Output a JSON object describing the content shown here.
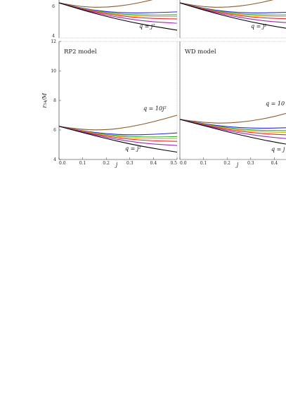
{
  "chart_data": [
    {
      "type": "line",
      "panel": "top-left",
      "title": "",
      "xlabel": "",
      "ylabel": "",
      "xlim": [
        0,
        0.5
      ],
      "ylim": [
        4,
        12
      ],
      "yticks": [
        "4",
        "6"
      ],
      "xticks": [],
      "annotations": [
        "q = j²"
      ],
      "series": [
        {
          "color": "#8B5A2B",
          "x": [
            0,
            0.1,
            0.2,
            0.3,
            0.4,
            0.5
          ],
          "y": [
            6.33,
            6.05,
            6.02,
            6.2,
            6.55,
            7.0
          ]
        },
        {
          "color": "#2A2AE0",
          "x": [
            0,
            0.1,
            0.2,
            0.3,
            0.4,
            0.5
          ],
          "y": [
            6.33,
            5.95,
            5.72,
            5.64,
            5.66,
            5.72
          ]
        },
        {
          "color": "#2AAA2A",
          "x": [
            0,
            0.1,
            0.2,
            0.3,
            0.4,
            0.5
          ],
          "y": [
            6.33,
            5.93,
            5.66,
            5.53,
            5.5,
            5.52
          ]
        },
        {
          "color": "#E0B020",
          "x": [
            0,
            0.1,
            0.2,
            0.3,
            0.4,
            0.5
          ],
          "y": [
            6.33,
            5.92,
            5.63,
            5.46,
            5.4,
            5.4
          ]
        },
        {
          "color": "#E02A2A",
          "x": [
            0,
            0.1,
            0.2,
            0.3,
            0.4,
            0.5
          ],
          "y": [
            6.33,
            5.9,
            5.58,
            5.37,
            5.27,
            5.24
          ]
        },
        {
          "color": "#9A2AB0",
          "x": [
            0,
            0.1,
            0.2,
            0.3,
            0.4,
            0.5
          ],
          "y": [
            6.33,
            5.87,
            5.5,
            5.22,
            5.04,
            4.95
          ]
        },
        {
          "color": "#000000",
          "x": [
            0,
            0.1,
            0.2,
            0.3,
            0.4,
            0.5
          ],
          "y": [
            6.33,
            5.84,
            5.41,
            5.04,
            4.74,
            4.48
          ]
        }
      ]
    },
    {
      "type": "line",
      "panel": "top-right",
      "title": "",
      "xlabel": "",
      "ylabel": "",
      "xlim": [
        0,
        0.5
      ],
      "ylim": [
        4,
        12
      ],
      "yticks": [],
      "xticks": [],
      "annotations": [
        "q = j²"
      ],
      "series": [
        {
          "color": "#8B5A2B",
          "x": [
            0,
            0.1,
            0.2,
            0.3,
            0.4,
            0.5
          ],
          "y": [
            6.33,
            6.05,
            6.02,
            6.2,
            6.55,
            7.0
          ]
        },
        {
          "color": "#2A2AE0",
          "x": [
            0,
            0.1,
            0.2,
            0.3,
            0.4,
            0.5
          ],
          "y": [
            6.33,
            5.95,
            5.72,
            5.64,
            5.66,
            5.72
          ]
        },
        {
          "color": "#2AAA2A",
          "x": [
            0,
            0.1,
            0.2,
            0.3,
            0.4,
            0.5
          ],
          "y": [
            6.33,
            5.93,
            5.66,
            5.53,
            5.5,
            5.52
          ]
        },
        {
          "color": "#E0B020",
          "x": [
            0,
            0.1,
            0.2,
            0.3,
            0.4,
            0.5
          ],
          "y": [
            6.33,
            5.92,
            5.63,
            5.46,
            5.4,
            5.4
          ]
        },
        {
          "color": "#E02A2A",
          "x": [
            0,
            0.1,
            0.2,
            0.3,
            0.4,
            0.5
          ],
          "y": [
            6.33,
            5.9,
            5.58,
            5.37,
            5.27,
            5.24
          ]
        },
        {
          "color": "#9A2AB0",
          "x": [
            0,
            0.1,
            0.2,
            0.3,
            0.4,
            0.5
          ],
          "y": [
            6.33,
            5.87,
            5.5,
            5.22,
            5.04,
            4.95
          ]
        },
        {
          "color": "#000000",
          "x": [
            0,
            0.1,
            0.2,
            0.3,
            0.4,
            0.5
          ],
          "y": [
            6.33,
            5.84,
            5.41,
            5.04,
            4.74,
            4.48
          ]
        }
      ]
    },
    {
      "type": "line",
      "panel": "bottom-left",
      "title": "RP2 model",
      "xlabel": "j",
      "ylabel": "r₅₄/M",
      "xlim": [
        0,
        0.5
      ],
      "ylim": [
        4,
        12
      ],
      "yticks": [
        "4",
        "6",
        "8",
        "10",
        "12"
      ],
      "xticks": [
        "0.0",
        "0.1",
        "0.2",
        "0.3",
        "0.4",
        "0.5"
      ],
      "annotations": [
        "q = 10j²",
        "q = j²"
      ],
      "series": [
        {
          "color": "#8B5A2B",
          "x": [
            0,
            0.1,
            0.2,
            0.3,
            0.4,
            0.5
          ],
          "y": [
            6.25,
            6.02,
            6.0,
            6.2,
            6.55,
            7.0
          ]
        },
        {
          "color": "#2A2AE0",
          "x": [
            0,
            0.1,
            0.2,
            0.3,
            0.4,
            0.5
          ],
          "y": [
            6.25,
            5.94,
            5.74,
            5.66,
            5.7,
            5.8
          ]
        },
        {
          "color": "#2AAA2A",
          "x": [
            0,
            0.1,
            0.2,
            0.3,
            0.4,
            0.5
          ],
          "y": [
            6.25,
            5.92,
            5.68,
            5.55,
            5.52,
            5.55
          ]
        },
        {
          "color": "#E0B020",
          "x": [
            0,
            0.1,
            0.2,
            0.3,
            0.4,
            0.5
          ],
          "y": [
            6.25,
            5.91,
            5.64,
            5.47,
            5.4,
            5.42
          ]
        },
        {
          "color": "#E02A2A",
          "x": [
            0,
            0.1,
            0.2,
            0.3,
            0.4,
            0.5
          ],
          "y": [
            6.25,
            5.89,
            5.58,
            5.37,
            5.26,
            5.23
          ]
        },
        {
          "color": "#9A2AB0",
          "x": [
            0,
            0.1,
            0.2,
            0.3,
            0.4,
            0.5
          ],
          "y": [
            6.25,
            5.86,
            5.5,
            5.22,
            5.04,
            4.95
          ]
        },
        {
          "color": "#000000",
          "x": [
            0,
            0.1,
            0.2,
            0.3,
            0.4,
            0.5
          ],
          "y": [
            6.25,
            5.82,
            5.42,
            5.05,
            4.75,
            4.5
          ]
        }
      ]
    },
    {
      "type": "line",
      "panel": "bottom-right",
      "title": "WD model",
      "xlabel": "j",
      "ylabel": "",
      "xlim": [
        0,
        0.5
      ],
      "ylim": [
        4,
        12
      ],
      "yticks": [],
      "xticks": [
        "0.0",
        "0.1",
        "0.2",
        "0.3",
        "0.4"
      ],
      "annotations": [
        "q = 10",
        "q = j"
      ],
      "series": [
        {
          "color": "#8B5A2B",
          "x": [
            0,
            0.1,
            0.2,
            0.3,
            0.4,
            0.5
          ],
          "y": [
            6.72,
            6.5,
            6.45,
            6.6,
            6.9,
            7.35
          ]
        },
        {
          "color": "#2A2AE0",
          "x": [
            0,
            0.1,
            0.2,
            0.3,
            0.4,
            0.5
          ],
          "y": [
            6.72,
            6.42,
            6.22,
            6.12,
            6.12,
            6.18
          ]
        },
        {
          "color": "#2AAA2A",
          "x": [
            0,
            0.1,
            0.2,
            0.3,
            0.4,
            0.5
          ],
          "y": [
            6.72,
            6.4,
            6.15,
            6.0,
            5.95,
            5.96
          ]
        },
        {
          "color": "#E0B020",
          "x": [
            0,
            0.1,
            0.2,
            0.3,
            0.4,
            0.5
          ],
          "y": [
            6.72,
            6.38,
            6.1,
            5.92,
            5.84,
            5.82
          ]
        },
        {
          "color": "#E02A2A",
          "x": [
            0,
            0.1,
            0.2,
            0.3,
            0.4,
            0.5
          ],
          "y": [
            6.72,
            6.36,
            6.04,
            5.82,
            5.7,
            5.65
          ]
        },
        {
          "color": "#9A2AB0",
          "x": [
            0,
            0.1,
            0.2,
            0.3,
            0.4,
            0.5
          ],
          "y": [
            6.72,
            6.33,
            5.96,
            5.68,
            5.48,
            5.36
          ]
        },
        {
          "color": "#000000",
          "x": [
            0,
            0.1,
            0.2,
            0.3,
            0.4,
            0.5
          ],
          "y": [
            6.72,
            6.3,
            5.88,
            5.5,
            5.18,
            4.9
          ]
        }
      ]
    }
  ]
}
